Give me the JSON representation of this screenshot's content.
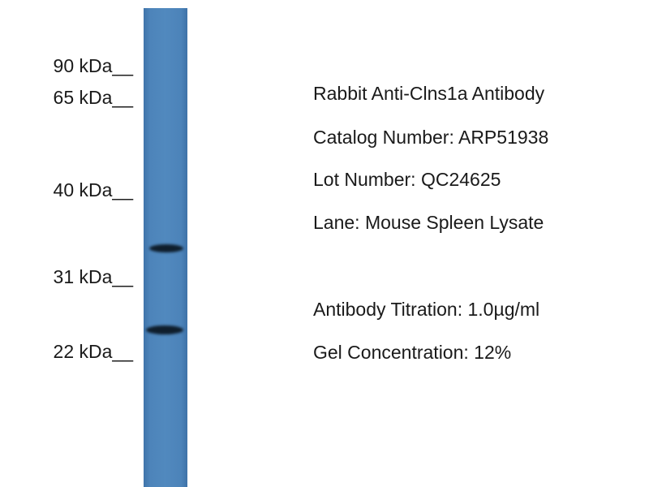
{
  "lane_color": "#4d84ba",
  "band_color": "#0f1e2c",
  "markers": [
    {
      "label": "90 kDa__"
    },
    {
      "label": "65 kDa__"
    },
    {
      "label": "40 kDa__"
    },
    {
      "label": "31 kDa__"
    },
    {
      "label": "22 kDa__"
    }
  ],
  "info": {
    "antibody": "Rabbit Anti-Clns1a Antibody",
    "catalog": "Catalog Number: ARP51938",
    "lot": "Lot Number: QC24625",
    "lane": "Lane: Mouse Spleen Lysate",
    "titration": "Antibody Titration: 1.0µg/ml",
    "gel": "Gel Concentration: 12%"
  }
}
